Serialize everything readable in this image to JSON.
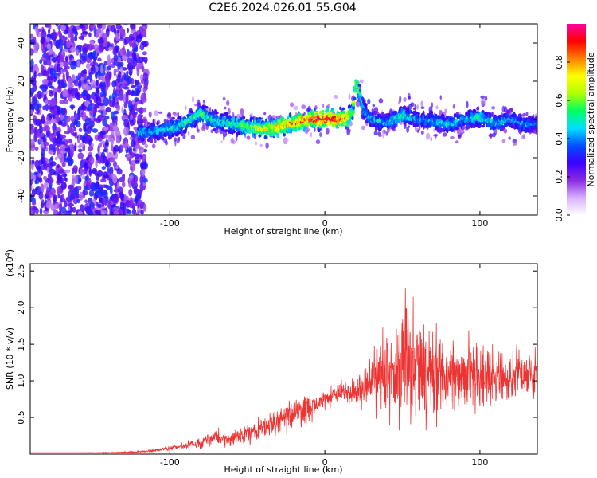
{
  "title": "C2E6.2024.026.01.55.G04",
  "chart_data": [
    {
      "type": "heatmap",
      "xlabel": "Height of straight line (km)",
      "ylabel": "Frequency (Hz)",
      "xlim": [
        -190,
        137
      ],
      "ylim": [
        -50,
        50
      ],
      "xticks": [
        -100,
        0,
        100
      ],
      "yticks": [
        -40,
        -20,
        0,
        20,
        40
      ],
      "colorbar": {
        "label": "Normalized spectral amplitude",
        "range": [
          0,
          1
        ],
        "ticks": [
          0.0,
          0.2,
          0.4,
          0.6,
          0.8
        ],
        "colors": [
          "#ffffff",
          "#d8b0ff",
          "#8a2be2",
          "#3a00ff",
          "#0050ff",
          "#00e0ff",
          "#00ff60",
          "#b0ff00",
          "#ffff00",
          "#ff8000",
          "#ff0000",
          "#ff00a0"
        ]
      },
      "ridge": {
        "x": [
          -120,
          -100,
          -90,
          -80,
          -70,
          -60,
          -50,
          -40,
          -30,
          -20,
          -10,
          0,
          10,
          15,
          18,
          20,
          22,
          25,
          30,
          40,
          50,
          60,
          70,
          80,
          90,
          100,
          110,
          120,
          130,
          137
        ],
        "frequency": [
          -7,
          -5,
          -2,
          3,
          -1,
          -2,
          -4,
          -5,
          -4,
          -2,
          0,
          0,
          0,
          1,
          4,
          20,
          15,
          5,
          0,
          -2,
          2,
          0,
          -1,
          -3,
          0,
          1,
          -2,
          0,
          -3,
          -2
        ],
        "amplitude": [
          0.45,
          0.5,
          0.55,
          0.6,
          0.5,
          0.55,
          0.65,
          0.75,
          0.8,
          0.85,
          0.95,
          1.0,
          0.9,
          0.85,
          0.6,
          0.7,
          0.6,
          0.5,
          0.45,
          0.45,
          0.55,
          0.45,
          0.45,
          0.5,
          0.45,
          0.55,
          0.5,
          0.45,
          0.45,
          0.4
        ]
      }
    },
    {
      "type": "line",
      "xlabel": "Height of straight line (km)",
      "ylabel": "SNR (10 * v/v)",
      "scale_label": "(x10",
      "scale_exponent": "4",
      "xlim": [
        -190,
        137
      ],
      "ylim": [
        0,
        2.6
      ],
      "xticks": [
        -100,
        0,
        100
      ],
      "yticks": [
        0.5,
        1.0,
        1.5,
        2.0,
        2.5
      ],
      "color": "#ee3333",
      "envelope": {
        "x": [
          -190,
          -160,
          -140,
          -120,
          -110,
          -100,
          -90,
          -80,
          -70,
          -60,
          -50,
          -40,
          -30,
          -20,
          -10,
          0,
          10,
          20,
          25,
          30,
          35,
          40,
          45,
          50,
          55,
          60,
          70,
          80,
          90,
          100,
          110,
          120,
          130,
          137
        ],
        "mean": [
          0.02,
          0.02,
          0.02,
          0.03,
          0.05,
          0.08,
          0.12,
          0.15,
          0.25,
          0.2,
          0.3,
          0.35,
          0.45,
          0.55,
          0.6,
          0.75,
          0.85,
          0.85,
          0.9,
          1.05,
          1.15,
          1.2,
          1.2,
          1.25,
          1.2,
          1.15,
          1.15,
          1.1,
          1.1,
          1.05,
          1.05,
          1.05,
          1.1,
          1.1
        ],
        "spread": [
          0.0,
          0.0,
          0.01,
          0.02,
          0.03,
          0.05,
          0.07,
          0.1,
          0.15,
          0.15,
          0.2,
          0.22,
          0.25,
          0.3,
          0.3,
          0.2,
          0.2,
          0.3,
          0.4,
          0.6,
          0.9,
          1.0,
          1.1,
          1.2,
          1.2,
          1.05,
          0.95,
          0.85,
          0.7,
          0.65,
          0.55,
          0.5,
          0.5,
          0.5
        ]
      }
    }
  ]
}
